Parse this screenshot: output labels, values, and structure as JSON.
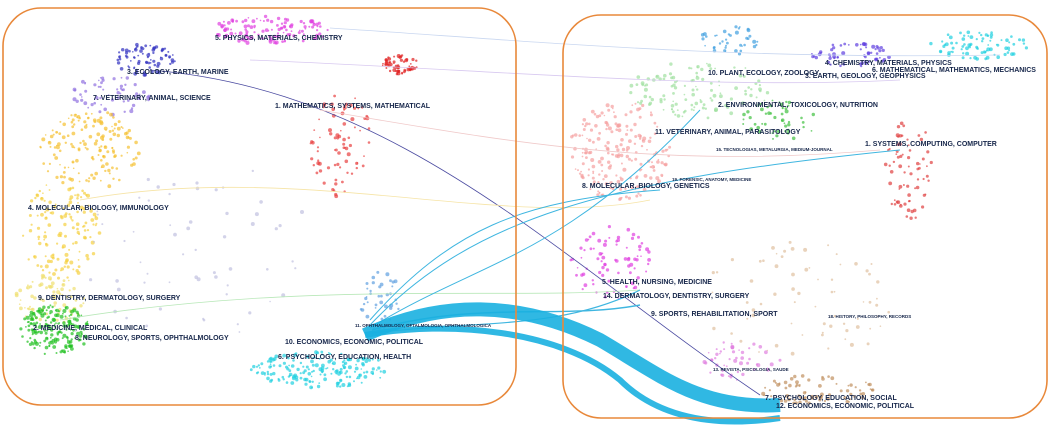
{
  "left_map": {
    "nodes": [
      {
        "label": "5. PHYSICS, MATERIALS, CHEMISTRY"
      },
      {
        "label": "3. ECOLOGY, EARTH, MARINE"
      },
      {
        "label": "7. VETERINARY, ANIMAL, SCIENCE"
      },
      {
        "label": "1. MATHEMATICS, SYSTEMS, MATHEMATICAL"
      },
      {
        "label": "4. MOLECULAR, BIOLOGY, IMMUNOLOGY"
      },
      {
        "label": "9. DENTISTRY, DERMATOLOGY, SURGERY"
      },
      {
        "label": "2. MEDICINE, MEDICAL, CLINICAL"
      },
      {
        "label": "8. NEUROLOGY, SPORTS, OPHTHALMOLOGY"
      },
      {
        "label": "11. OPHTHALMOLOGY, OFTALMOLOGIA, OPHTHALMOLOGICA"
      },
      {
        "label": "10. ECONOMICS, ECONOMIC, POLITICAL"
      },
      {
        "label": "6. PSYCHOLOGY, EDUCATION, HEALTH"
      }
    ]
  },
  "right_map": {
    "nodes": [
      {
        "label": "4. CHEMISTRY, MATERIALS, PHYSICS"
      },
      {
        "label": "6. MATHEMATICAL, MATHEMATICS, MECHANICS"
      },
      {
        "label": "10. PLANT, ECOLOGY, ZOOLOGY"
      },
      {
        "label": "3. EARTH, GEOLOGY, GEOPHYSICS"
      },
      {
        "label": "2. ENVIRONMENTAL, TOXICOLOGY, NUTRITION"
      },
      {
        "label": "11. VETERINARY, ANIMAL, PARASITOLOGY"
      },
      {
        "label": "1. SYSTEMS, COMPUTING, COMPUTER"
      },
      {
        "label": "15. TECNOLOGIAS, METALURGIA, MEDIUM-JOURNAL"
      },
      {
        "label": "19. FORENSIC, ANATOMY, MEDICINE"
      },
      {
        "label": "8. MOLECULAR, BIOLOGY, GENETICS"
      },
      {
        "label": "5. HEALTH, NURSING, MEDICINE"
      },
      {
        "label": "14. DERMATOLOGY, DENTISTRY, SURGERY"
      },
      {
        "label": "9. SPORTS, REHABILITATION, SPORT"
      },
      {
        "label": "18. HISTORY, PHILOSOPHY, RECORDS"
      },
      {
        "label": "13. REVISTA, PSICOLOGIA, SAUDE"
      },
      {
        "label": "7. PSYCHOLOGY, EDUCATION, SOCIAL"
      },
      {
        "label": "12. ECONOMICS, ECONOMIC, POLITICAL"
      }
    ]
  }
}
